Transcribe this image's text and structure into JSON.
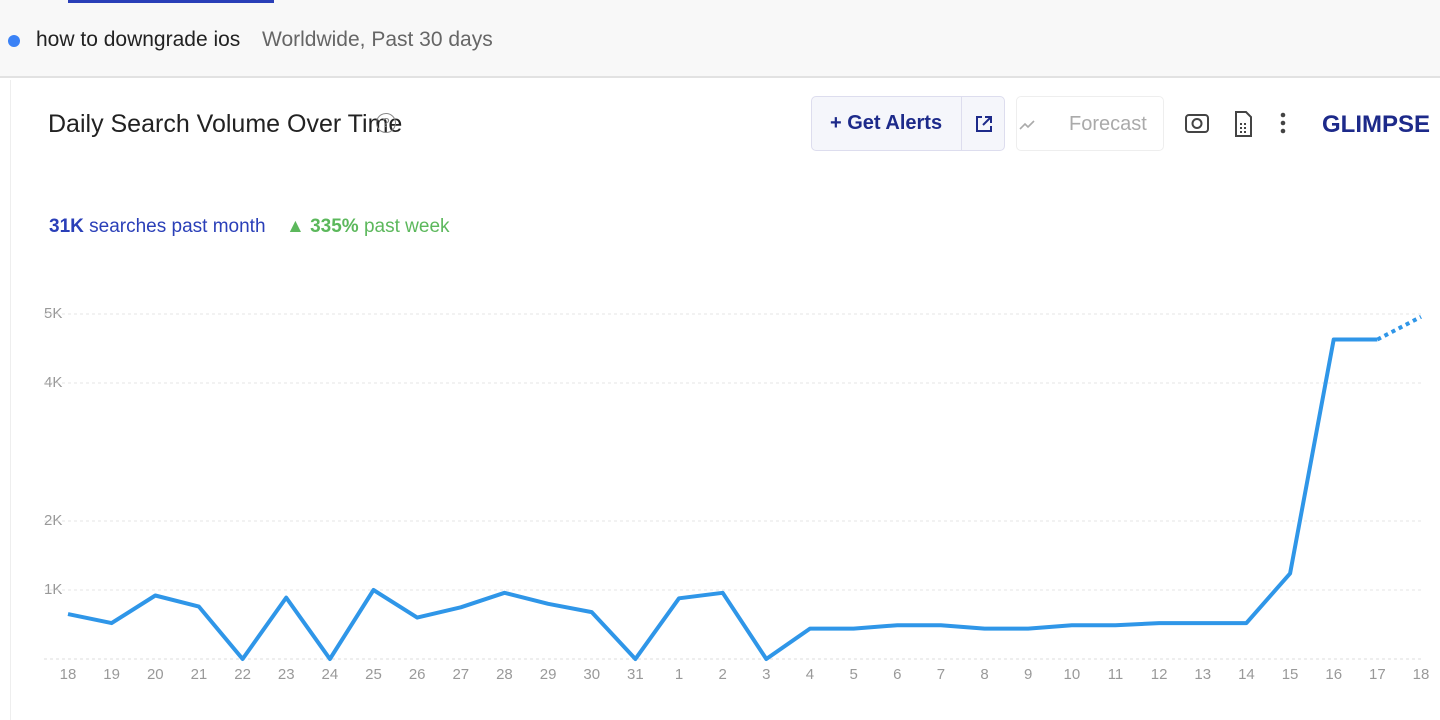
{
  "topbar": {
    "query": "how to downgrade ios",
    "scope": "Worldwide, Past 30 days"
  },
  "header": {
    "title": "Daily Search Volume Over Time",
    "alerts_button": "Get Alerts",
    "forecast_button": "Forecast",
    "logo": "GLIMPSE"
  },
  "stats": {
    "total": "31K",
    "total_label": "searches past month",
    "change": "335%",
    "change_label": "past week"
  },
  "chart_data": {
    "type": "line",
    "categories": [
      "18",
      "19",
      "20",
      "21",
      "22",
      "23",
      "24",
      "25",
      "26",
      "27",
      "28",
      "29",
      "30",
      "31",
      "1",
      "2",
      "3",
      "4",
      "5",
      "6",
      "7",
      "8",
      "9",
      "10",
      "11",
      "12",
      "13",
      "14",
      "15",
      "16",
      "17",
      "18"
    ],
    "series": [
      {
        "color": "#2f96e8",
        "values": [
          650,
          520,
          920,
          760,
          0,
          890,
          0,
          1000,
          600,
          750,
          960,
          800,
          680,
          0,
          880,
          960,
          0,
          440,
          440,
          490,
          490,
          440,
          440,
          490,
          490,
          520,
          520,
          520,
          1240,
          4630,
          4630,
          null
        ]
      },
      {
        "color": "#2f96e8",
        "dashed": true,
        "values": [
          null,
          null,
          null,
          null,
          null,
          null,
          null,
          null,
          null,
          null,
          null,
          null,
          null,
          null,
          null,
          null,
          null,
          null,
          null,
          null,
          null,
          null,
          null,
          null,
          null,
          null,
          null,
          null,
          null,
          null,
          4630,
          4960
        ]
      }
    ],
    "ylim": [
      0,
      5000
    ],
    "yticks": [
      {
        "value": 1000,
        "label": "1K"
      },
      {
        "value": 2000,
        "label": "2K"
      },
      {
        "value": 4000,
        "label": "4K"
      },
      {
        "value": 5000,
        "label": "5K"
      }
    ],
    "grid": true
  }
}
